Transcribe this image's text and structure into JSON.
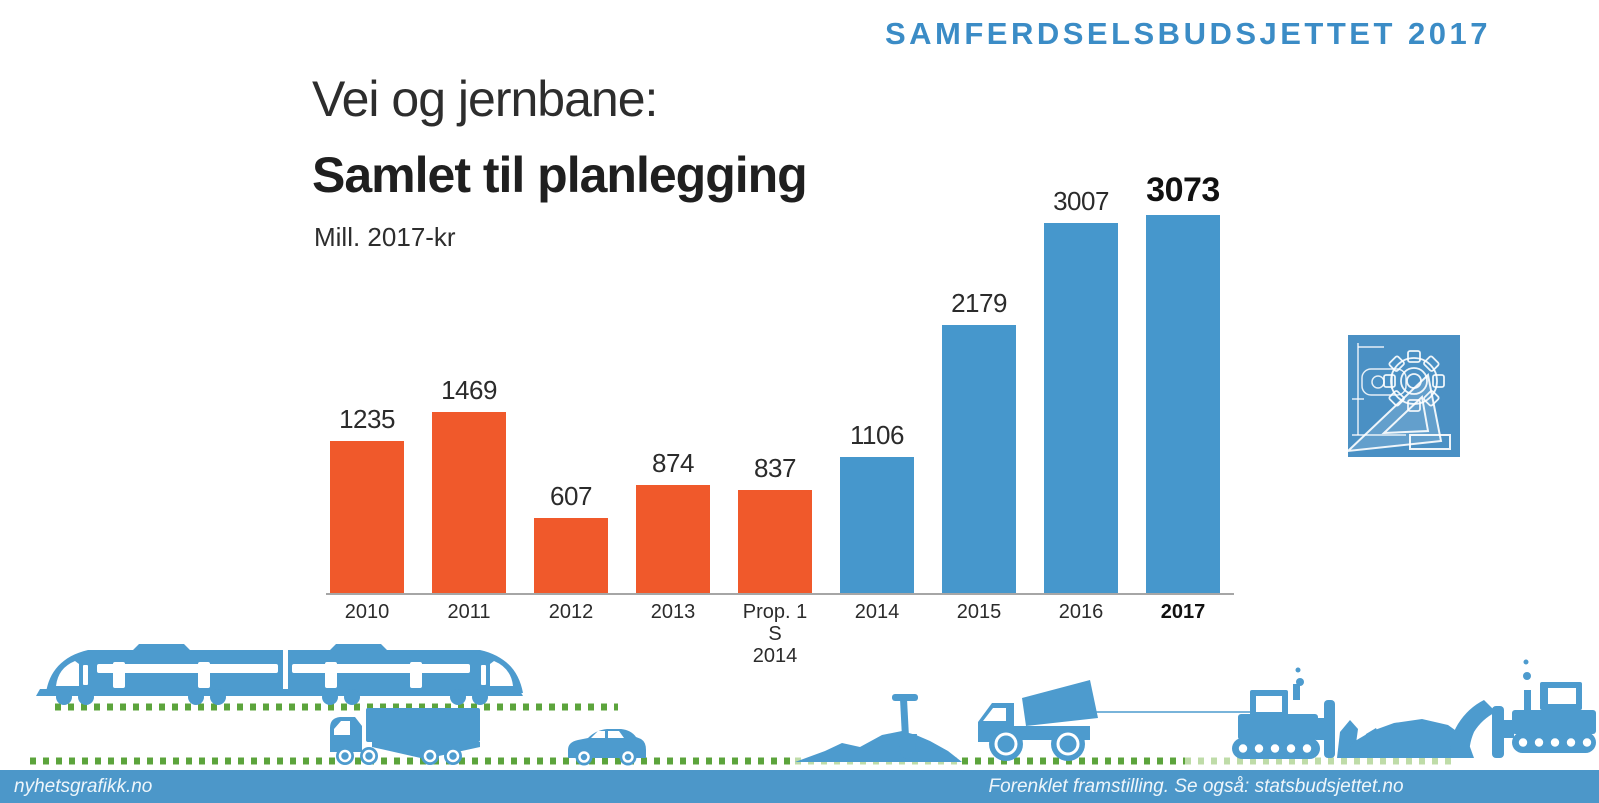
{
  "header": {
    "title": "SAMFERDSELSBUDSJETTET 2017"
  },
  "chart_data": {
    "type": "bar",
    "title": "Vei og jernbane:",
    "subtitle": "Samlet til planlegging",
    "unit": "Mill. 2017-kr",
    "categories": [
      "2010",
      "2011",
      "2012",
      "2013",
      "Prop. 1 S\n2014",
      "2014",
      "2015",
      "2016",
      "2017"
    ],
    "values": [
      1235,
      1469,
      607,
      874,
      837,
      1106,
      2179,
      3007,
      3073
    ],
    "orange_bar_count": 5,
    "highlight_index": 8,
    "ylim": [
      0,
      3200
    ],
    "grid": false,
    "legend_position": "none"
  },
  "colors": {
    "header_blue": "#3b8cc6",
    "bar_orange": "#f0592b",
    "bar_blue": "#4697cc",
    "illustration_blue": "#4d9bce",
    "green_dots": "#5ca43c",
    "green_dots_pale": "#bfdca8",
    "footer_blue": "#4c97c9",
    "icon_square_blue": "#4a90c4",
    "axis_gray": "#a6a6a6"
  },
  "icons": {
    "plan_icon": "blueprint-gear-and-set-square",
    "illustration_items": [
      "train",
      "freight-truck",
      "car",
      "gravel-pile-with-shovel",
      "dump-truck",
      "bulldozer",
      "rubble-pile",
      "bulldozer"
    ]
  },
  "footer": {
    "left": "nyhetsgrafikk.no",
    "right": "Forenklet framstilling. Se også: statsbudsjettet.no"
  }
}
